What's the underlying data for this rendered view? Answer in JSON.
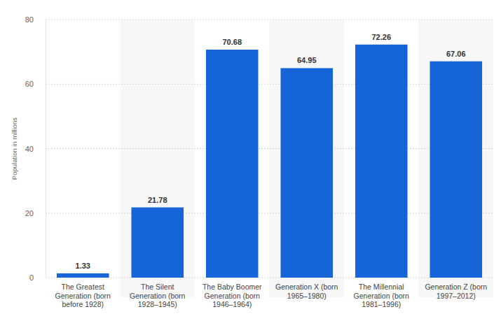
{
  "chart_data": {
    "type": "bar",
    "y_label": "Population in millions",
    "categories": [
      "The Greatest Generation (born before 1928)",
      "The Silent Generation (born 1928–1945)",
      "The Baby Boomer Generation (born 1946–1964)",
      "Generation X (born 1965–1980)",
      "The Millennial Generation (born 1981–1996)",
      "Generation Z (born 1997–2012)"
    ],
    "values": [
      1.33,
      21.78,
      70.68,
      64.95,
      72.26,
      67.06
    ],
    "color": "#1565d8",
    "ylim": [
      0,
      80
    ],
    "yticks": [
      0,
      20,
      40,
      60,
      80
    ],
    "grid": true,
    "data_labels": true
  }
}
